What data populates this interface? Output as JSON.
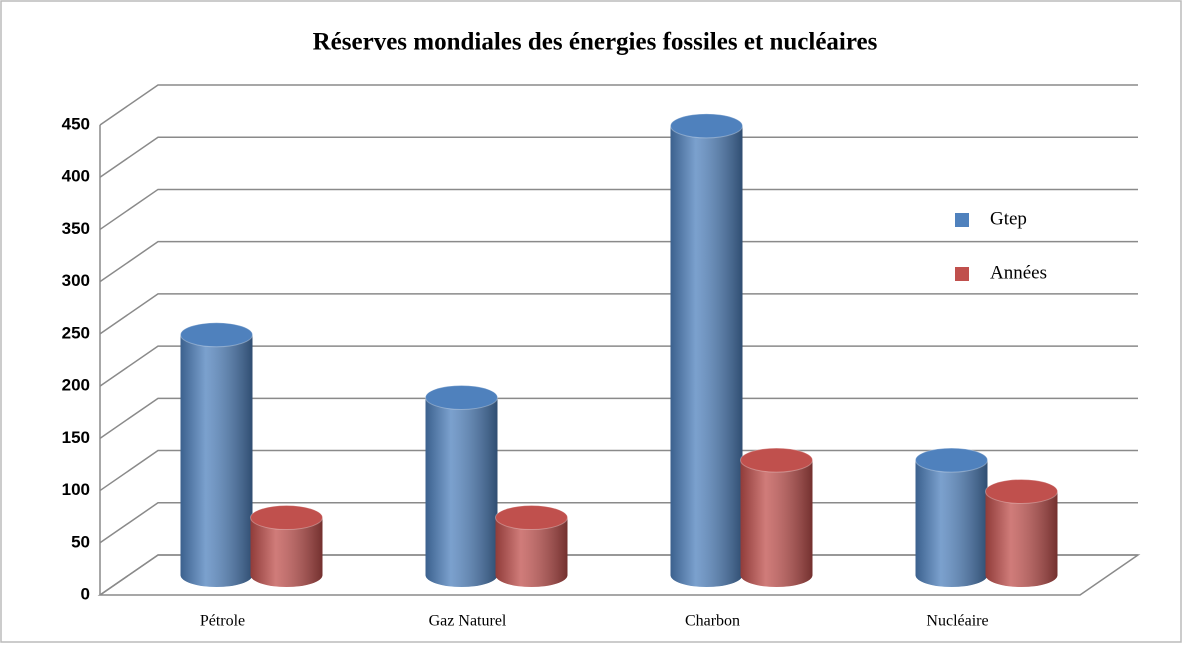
{
  "chart_data": {
    "type": "bar3d",
    "title": "Réserves mondiales des énergies fossiles et nucléaires",
    "categories": [
      "Pétrole",
      "Gaz Naturel",
      "Charbon",
      "Nucléaire"
    ],
    "series": [
      {
        "name": "Gtep",
        "color": "#4f81bd",
        "values": [
          230,
          170,
          430,
          110
        ]
      },
      {
        "name": "Années",
        "color": "#c0504d",
        "values": [
          55,
          55,
          110,
          80
        ]
      }
    ],
    "ylim": [
      0,
      450
    ],
    "yticks": [
      0,
      50,
      100,
      150,
      200,
      250,
      300,
      350,
      400,
      450
    ],
    "grid": true
  }
}
